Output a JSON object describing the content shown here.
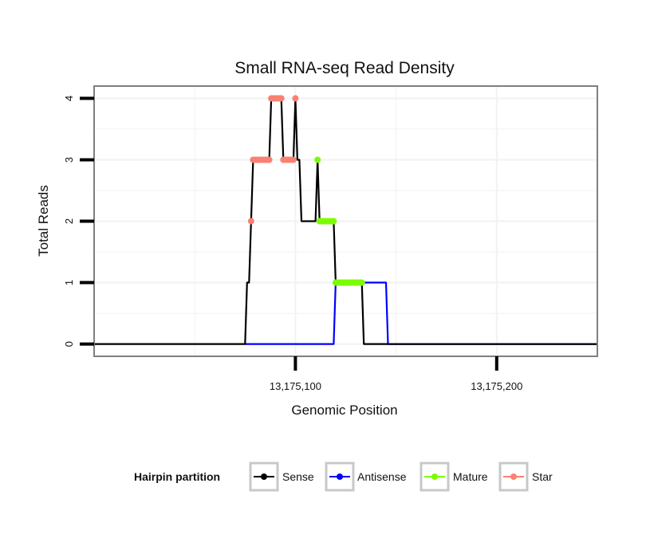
{
  "chart_data": {
    "type": "line",
    "title": "Small RNA-seq Read Density",
    "xlabel": "Genomic Position",
    "ylabel": "Total Reads",
    "xlim": [
      13175000,
      13175250
    ],
    "ylim": [
      -0.2,
      4.2
    ],
    "xticks": [
      {
        "value": 13175100,
        "label": "13,175,100"
      },
      {
        "value": 13175200,
        "label": "13,175,200"
      }
    ],
    "yticks": [
      {
        "value": 0,
        "label": "0"
      },
      {
        "value": 1,
        "label": "1"
      },
      {
        "value": 2,
        "label": "2"
      },
      {
        "value": 3,
        "label": "3"
      },
      {
        "value": 4,
        "label": "4"
      }
    ],
    "grid": true,
    "legend": {
      "title": "Hairpin partition",
      "placement": "bottom",
      "entries": [
        {
          "name": "Sense",
          "color": "#000000"
        },
        {
          "name": "Antisense",
          "color": "#0000ff"
        },
        {
          "name": "Mature",
          "color": "#7cfc00"
        },
        {
          "name": "Star",
          "color": "#fa8072"
        }
      ]
    },
    "series": [
      {
        "name": "Sense",
        "color": "#000000",
        "points": [
          [
            13175000,
            0
          ],
          [
            13175075,
            0
          ],
          [
            13175076,
            1
          ],
          [
            13175077,
            1
          ],
          [
            13175079,
            3
          ],
          [
            13175087,
            3
          ],
          [
            13175088,
            4
          ],
          [
            13175093,
            4
          ],
          [
            13175094,
            3
          ],
          [
            13175099,
            3
          ],
          [
            13175100,
            4
          ],
          [
            13175101,
            3
          ],
          [
            13175102,
            3
          ],
          [
            13175103,
            2
          ],
          [
            13175110,
            2
          ],
          [
            13175111,
            3
          ],
          [
            13175112,
            2
          ],
          [
            13175119,
            2
          ],
          [
            13175120,
            1
          ],
          [
            13175133,
            1
          ],
          [
            13175134,
            0
          ],
          [
            13175250,
            0
          ]
        ]
      },
      {
        "name": "Antisense",
        "color": "#0000ff",
        "points": [
          [
            13175075,
            0
          ],
          [
            13175119,
            0
          ],
          [
            13175120,
            1
          ],
          [
            13175145,
            1
          ],
          [
            13175146,
            0
          ],
          [
            13175250,
            0
          ]
        ]
      },
      {
        "name": "Mature",
        "color": "#7cfc00",
        "points": [
          [
            13175111,
            3
          ],
          [
            13175112,
            2
          ],
          [
            13175113,
            2
          ],
          [
            13175114,
            2
          ],
          [
            13175115,
            2
          ],
          [
            13175116,
            2
          ],
          [
            13175117,
            2
          ],
          [
            13175118,
            2
          ],
          [
            13175119,
            2
          ],
          [
            13175120,
            1
          ],
          [
            13175121,
            1
          ],
          [
            13175122,
            1
          ],
          [
            13175123,
            1
          ],
          [
            13175124,
            1
          ],
          [
            13175125,
            1
          ],
          [
            13175126,
            1
          ],
          [
            13175127,
            1
          ],
          [
            13175128,
            1
          ],
          [
            13175129,
            1
          ],
          [
            13175130,
            1
          ],
          [
            13175131,
            1
          ],
          [
            13175132,
            1
          ],
          [
            13175133,
            1
          ]
        ]
      },
      {
        "name": "Star",
        "color": "#fa8072",
        "points": [
          [
            13175078,
            2
          ],
          [
            13175079,
            3
          ],
          [
            13175080,
            3
          ],
          [
            13175081,
            3
          ],
          [
            13175082,
            3
          ],
          [
            13175083,
            3
          ],
          [
            13175084,
            3
          ],
          [
            13175085,
            3
          ],
          [
            13175086,
            3
          ],
          [
            13175087,
            3
          ],
          [
            13175088,
            4
          ],
          [
            13175089,
            4
          ],
          [
            13175090,
            4
          ],
          [
            13175091,
            4
          ],
          [
            13175092,
            4
          ],
          [
            13175093,
            4
          ],
          [
            13175094,
            3
          ],
          [
            13175095,
            3
          ],
          [
            13175096,
            3
          ],
          [
            13175097,
            3
          ],
          [
            13175098,
            3
          ],
          [
            13175099,
            3
          ],
          [
            13175100,
            4
          ]
        ]
      }
    ]
  }
}
